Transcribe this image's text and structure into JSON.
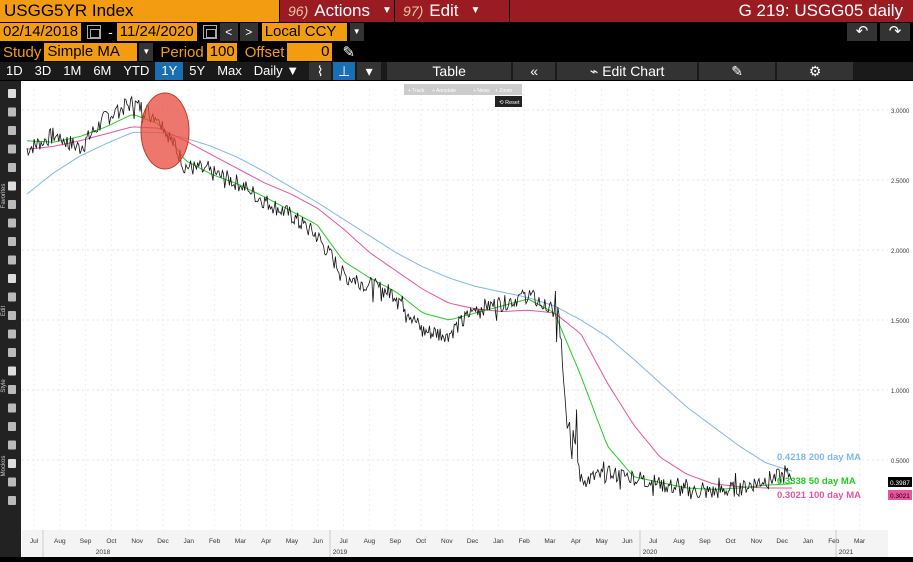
{
  "header": {
    "ticker": "USGG5YR Index",
    "actions_num": "96)",
    "actions_label": "Actions",
    "edit_num": "97)",
    "edit_label": "Edit",
    "right_title": "G 219: USGG05 daily"
  },
  "daterow": {
    "start": "02/14/2018",
    "dash": "-",
    "end": "11/24/2020",
    "currency": "Local CCY",
    "prev": "<",
    "next": ">"
  },
  "studyrow": {
    "study_label": "Study",
    "study_value": "Simple MA",
    "period_label": "Period",
    "period_value": "100",
    "offset_label": "Offset",
    "offset_value": "0"
  },
  "toolbar": {
    "ranges": [
      "1D",
      "3D",
      "1M",
      "6M",
      "YTD",
      "1Y",
      "5Y",
      "Max"
    ],
    "active_range": "1Y",
    "interval": "Daily",
    "table_label": "Table",
    "edit_chart_label": "Edit Chart"
  },
  "overlay": {
    "track": "Track",
    "annotate": "Annotate",
    "news": "News",
    "zoom": "Zoom",
    "reset": "Reset"
  },
  "sidebar_labels": [
    "Favorites",
    "Edit",
    "Style",
    "Mockos"
  ],
  "colors": {
    "price": "#111111",
    "ma50": "#22cc22",
    "ma100": "#e8559a",
    "ma200": "#7db8f0",
    "accent": "#f39c12",
    "menu": "#9b1b22",
    "highlight": "#e84a3c"
  },
  "chart_data": {
    "type": "line",
    "title": "",
    "ylim": [
      0,
      3.15
    ],
    "yticks": [
      "3.0000",
      "2.5000",
      "2.0000",
      "1.5000",
      "1.0000",
      "0.5000"
    ],
    "xticks": [
      "Jul",
      "Aug",
      "Sep",
      "Oct",
      "Nov",
      "Dec",
      "Jan",
      "Feb",
      "Mar",
      "Apr",
      "May",
      "Jun",
      "Jul",
      "Aug",
      "Sep",
      "Oct",
      "Nov",
      "Dec",
      "Jan",
      "Feb",
      "Mar",
      "Apr",
      "May",
      "Jun",
      "Jul",
      "Aug",
      "Sep",
      "Oct",
      "Nov",
      "Dec",
      "Jan",
      "Feb",
      "Mar"
    ],
    "years": [
      "2018",
      "2019",
      "2020",
      "2021"
    ],
    "last_price_label": "0.3987",
    "legend": [
      {
        "value": "0.4218",
        "label": "200 day MA",
        "color": "#7db8f0"
      },
      {
        "value": "0.3338",
        "label": "50 day MA",
        "color": "#22cc22"
      },
      {
        "value": "0.3021",
        "label": "100 day MA",
        "color": "#e8559a"
      }
    ],
    "axis_tags": [
      "0.3987",
      "0.3021"
    ],
    "series": [
      {
        "name": "USGG5YR Index",
        "x": [
          0,
          1,
          2,
          3,
          4,
          5,
          6,
          7,
          8,
          9,
          10,
          11,
          12,
          13,
          14,
          15,
          16,
          17,
          18,
          19,
          20,
          21,
          22,
          23,
          24,
          25,
          26,
          27,
          28,
          29
        ],
        "values": [
          2.72,
          2.82,
          2.73,
          2.95,
          3.05,
          2.95,
          2.6,
          2.55,
          2.48,
          2.35,
          2.25,
          2.1,
          1.82,
          1.75,
          1.68,
          1.42,
          1.4,
          1.58,
          1.62,
          1.68,
          1.55,
          0.35,
          0.4,
          0.38,
          0.33,
          0.28,
          0.27,
          0.3,
          0.36,
          0.4
        ]
      },
      {
        "name": "50 day MA",
        "x": [
          0,
          1,
          2,
          3,
          4,
          5,
          6,
          7,
          8,
          9,
          10,
          11,
          12,
          13,
          14,
          15,
          16,
          17,
          18,
          19,
          20,
          21,
          22,
          23,
          24,
          25,
          26,
          27,
          28,
          29
        ],
        "values": [
          2.78,
          2.77,
          2.81,
          2.88,
          2.97,
          2.9,
          2.64,
          2.54,
          2.47,
          2.38,
          2.28,
          2.18,
          1.92,
          1.8,
          1.7,
          1.55,
          1.5,
          1.55,
          1.6,
          1.65,
          1.55,
          1.1,
          0.6,
          0.38,
          0.34,
          0.3,
          0.29,
          0.3,
          0.32,
          0.33
        ]
      },
      {
        "name": "100 day MA",
        "x": [
          0,
          1,
          2,
          3,
          4,
          5,
          6,
          7,
          8,
          9,
          10,
          11,
          12,
          13,
          14,
          15,
          16,
          17,
          18,
          19,
          20,
          21,
          22,
          23,
          24,
          25,
          26,
          27,
          28,
          29
        ],
        "values": [
          2.72,
          2.74,
          2.78,
          2.83,
          2.88,
          2.87,
          2.78,
          2.68,
          2.58,
          2.48,
          2.4,
          2.3,
          2.15,
          1.98,
          1.85,
          1.72,
          1.62,
          1.58,
          1.56,
          1.57,
          1.55,
          1.4,
          1.05,
          0.75,
          0.52,
          0.4,
          0.33,
          0.31,
          0.3,
          0.3
        ]
      },
      {
        "name": "200 day MA",
        "x": [
          0,
          1,
          2,
          3,
          4,
          5,
          6,
          7,
          8,
          9,
          10,
          11,
          12,
          13,
          14,
          15,
          16,
          17,
          18,
          19,
          20,
          21,
          22,
          23,
          24,
          25,
          26,
          27,
          28,
          29
        ],
        "values": [
          2.4,
          2.55,
          2.67,
          2.76,
          2.84,
          2.84,
          2.8,
          2.74,
          2.66,
          2.56,
          2.45,
          2.34,
          2.22,
          2.1,
          1.98,
          1.88,
          1.8,
          1.74,
          1.7,
          1.66,
          1.6,
          1.5,
          1.38,
          1.22,
          1.05,
          0.88,
          0.74,
          0.6,
          0.48,
          0.42
        ]
      }
    ]
  }
}
